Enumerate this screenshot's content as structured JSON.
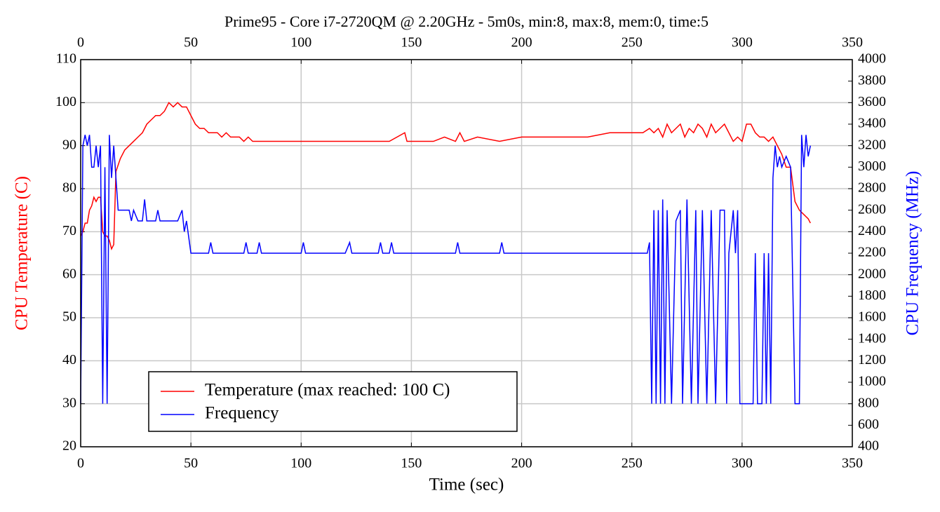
{
  "chart_data": {
    "type": "line",
    "title": "Prime95 - Core i7-2720QM @ 2.20GHz - 5m0s, min:8, max:8, mem:0, time:5",
    "xlabel": "Time (sec)",
    "ylabel": "CPU Temperature (C)",
    "y2label": "CPU Frequency (MHz)",
    "xlim": [
      0,
      350
    ],
    "xticks": [
      0,
      50,
      100,
      150,
      200,
      250,
      300,
      350
    ],
    "ylim": [
      20,
      110
    ],
    "yticks": [
      20,
      30,
      40,
      50,
      60,
      70,
      80,
      90,
      100,
      110
    ],
    "y2lim": [
      400,
      4000
    ],
    "y2ticks": [
      400,
      600,
      800,
      1000,
      1200,
      1400,
      1600,
      1800,
      2000,
      2200,
      2400,
      2600,
      2800,
      3000,
      3200,
      3400,
      3600,
      3800,
      4000
    ],
    "grid": true,
    "legend": "lower left",
    "series": [
      {
        "name": "Temperature (max reached: 100 C)",
        "color": "#ff0000",
        "axis": "y",
        "x": [
          0,
          1,
          2,
          3,
          4,
          5,
          6,
          7,
          8,
          9,
          10,
          11,
          12,
          13,
          14,
          15,
          16,
          18,
          20,
          22,
          24,
          26,
          28,
          30,
          32,
          34,
          36,
          38,
          40,
          42,
          44,
          46,
          48,
          50,
          52,
          54,
          56,
          58,
          60,
          62,
          64,
          66,
          68,
          70,
          72,
          74,
          76,
          78,
          80,
          85,
          100,
          120,
          135,
          140,
          147,
          148,
          155,
          160,
          165,
          170,
          172,
          174,
          180,
          190,
          200,
          210,
          220,
          230,
          240,
          250,
          255,
          258,
          260,
          262,
          264,
          266,
          268,
          270,
          272,
          274,
          276,
          278,
          280,
          282,
          284,
          286,
          288,
          290,
          292,
          294,
          296,
          298,
          300,
          302,
          304,
          306,
          308,
          310,
          312,
          314,
          316,
          318,
          320,
          322,
          324,
          326,
          328,
          330,
          331
        ],
        "values": [
          69,
          70,
          72,
          72,
          75,
          76,
          78,
          77,
          78,
          78,
          70,
          69,
          69,
          68,
          66,
          67,
          84,
          87,
          89,
          90,
          91,
          92,
          93,
          95,
          96,
          97,
          97,
          98,
          100,
          99,
          100,
          99,
          99,
          97,
          95,
          94,
          94,
          93,
          93,
          93,
          92,
          93,
          92,
          92,
          92,
          91,
          92,
          91,
          91,
          91,
          91,
          91,
          91,
          91,
          93,
          91,
          91,
          91,
          92,
          91,
          93,
          91,
          92,
          91,
          92,
          92,
          92,
          92,
          93,
          93,
          93,
          94,
          93,
          94,
          92,
          95,
          93,
          94,
          95,
          92,
          94,
          93,
          95,
          94,
          92,
          95,
          93,
          94,
          95,
          93,
          91,
          92,
          91,
          95,
          95,
          93,
          92,
          92,
          91,
          92,
          90,
          88,
          85,
          85,
          77,
          75,
          74,
          73,
          72
        ]
      },
      {
        "name": "Frequency",
        "color": "#0000ff",
        "axis": "y2",
        "x": [
          0,
          1,
          2,
          3,
          4,
          5,
          6,
          7,
          8,
          9,
          10,
          11,
          12,
          13,
          14,
          15,
          16,
          17,
          20,
          22,
          23,
          24,
          26,
          28,
          29,
          30,
          34,
          35,
          36,
          40,
          44,
          46,
          47,
          48,
          50,
          58,
          59,
          60,
          74,
          75,
          76,
          80,
          81,
          82,
          100,
          101,
          102,
          120,
          122,
          123,
          135,
          136,
          137,
          140,
          141,
          142,
          150,
          170,
          171,
          172,
          190,
          191,
          192,
          257,
          258,
          259,
          260,
          261,
          262,
          263,
          264,
          265,
          266,
          268,
          270,
          272,
          273,
          275,
          277,
          279,
          280,
          282,
          284,
          286,
          288,
          290,
          292,
          293,
          294,
          296,
          297,
          298,
          299,
          300,
          305,
          306,
          307,
          309,
          310,
          311,
          312,
          313,
          314,
          315,
          316,
          317,
          318,
          320,
          322,
          324,
          326,
          327,
          328,
          329,
          330,
          331
        ],
        "values": [
          800,
          3200,
          3300,
          3200,
          3300,
          3000,
          3000,
          3200,
          3000,
          3200,
          800,
          3000,
          800,
          3300,
          2900,
          3200,
          2900,
          2600,
          2600,
          2600,
          2500,
          2600,
          2500,
          2500,
          2700,
          2500,
          2500,
          2600,
          2500,
          2500,
          2500,
          2600,
          2400,
          2500,
          2200,
          2200,
          2300,
          2200,
          2200,
          2300,
          2200,
          2200,
          2300,
          2200,
          2200,
          2300,
          2200,
          2200,
          2300,
          2200,
          2200,
          2300,
          2200,
          2200,
          2300,
          2200,
          2200,
          2200,
          2300,
          2200,
          2200,
          2300,
          2200,
          2200,
          2300,
          800,
          2600,
          800,
          2600,
          800,
          2700,
          800,
          2600,
          800,
          2500,
          2600,
          800,
          2700,
          800,
          2600,
          800,
          2600,
          800,
          2600,
          800,
          2600,
          2600,
          800,
          2200,
          2600,
          2200,
          2600,
          800,
          800,
          800,
          2200,
          800,
          800,
          2200,
          800,
          2200,
          800,
          2900,
          3200,
          3000,
          3100,
          3000,
          3100,
          3000,
          800,
          800,
          3300,
          3000,
          3300,
          3100,
          3200
        ]
      }
    ]
  }
}
